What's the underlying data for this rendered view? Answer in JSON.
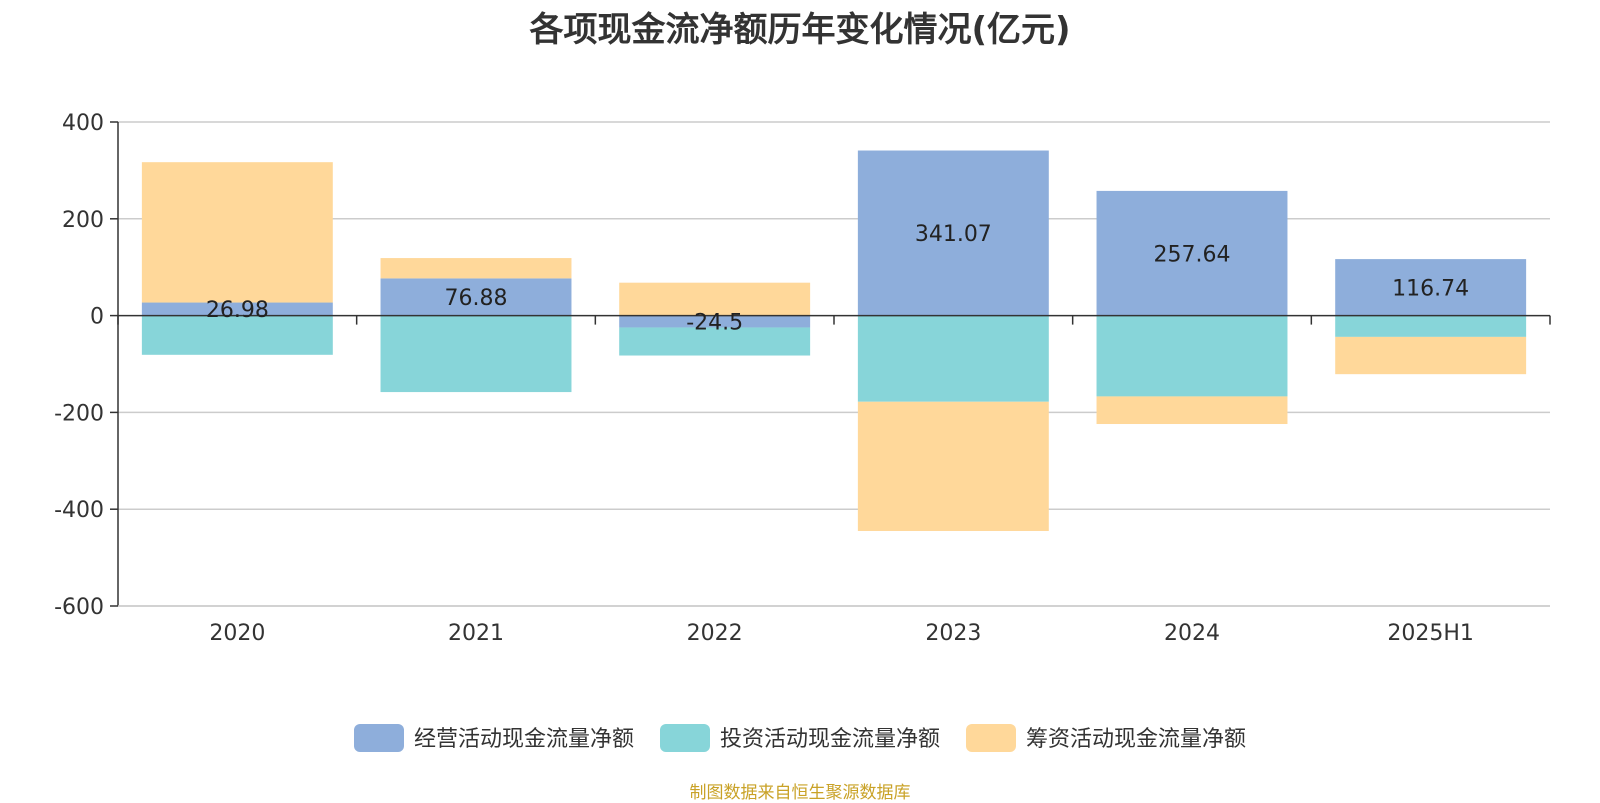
{
  "chart_data": {
    "type": "bar",
    "stacked": true,
    "title": "各项现金流净额历年变化情况(亿元)",
    "categories": [
      "2020",
      "2021",
      "2022",
      "2023",
      "2024",
      "2025H1"
    ],
    "series": [
      {
        "name": "经营活动现金流量净额",
        "color": "#8eaedb",
        "values": [
          26.98,
          76.88,
          -24.5,
          341.07,
          257.64,
          116.74
        ]
      },
      {
        "name": "投资活动现金流量净额",
        "color": "#87d5d9",
        "values": [
          -81,
          -158,
          -58,
          -178,
          -167,
          -44
        ]
      },
      {
        "name": "筹资活动现金流量净额",
        "color": "#ffd89a",
        "values": [
          290,
          42,
          68,
          -267,
          -57,
          -77
        ]
      }
    ],
    "data_labels": [
      "26.98",
      "76.88",
      "-24.5",
      "341.07",
      "257.64",
      "116.74"
    ],
    "ylim": [
      -600,
      400
    ],
    "yticks": [
      "400",
      "200",
      "0",
      "-200",
      "-400",
      "-600"
    ],
    "grid": true,
    "legend_position": "bottom"
  },
  "source_text": "制图数据来自恒生聚源数据库"
}
